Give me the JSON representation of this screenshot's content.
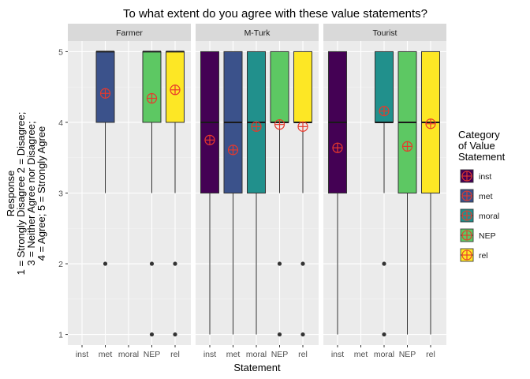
{
  "chart_data": {
    "type": "box",
    "title": "To what extent do you agree with these value statements?",
    "xlabel": "Statement",
    "ylabel_lines": [
      "Response",
      "1 = Strongly Disagree 2 = Disagree;",
      "3 = Neither Agree nor Disagree;",
      "4 = Agree; 5 = Strongly Agree"
    ],
    "ylim": [
      0.85,
      5.15
    ],
    "yticks": [
      1,
      2,
      3,
      4,
      5
    ],
    "categories": [
      "inst",
      "met",
      "moral",
      "NEP",
      "rel"
    ],
    "colors": {
      "inst": "#440154",
      "met": "#3B528B",
      "moral": "#21908C",
      "NEP": "#5DC863",
      "rel": "#FDE725",
      "mean_marker": "#E8392C",
      "panel_bg": "#EBEBEB",
      "strip_bg": "#D9D9D9"
    },
    "legend": {
      "title_lines": [
        "Category",
        "of Value",
        "Statement"
      ],
      "position": "right",
      "items": [
        "inst",
        "met",
        "moral",
        "NEP",
        "rel"
      ]
    },
    "mean_marker_icon": "crossed-circle-icon",
    "panels": [
      {
        "name": "Farmer",
        "boxes": [
          {
            "category": "met",
            "q1": 4,
            "median": 5,
            "q3": 5,
            "whisker_low": 3,
            "whisker_high": 5,
            "mean": 4.41,
            "outliers": [
              2
            ]
          },
          {
            "category": "NEP",
            "q1": 4,
            "median": 5,
            "q3": 5,
            "whisker_low": 3,
            "whisker_high": 5,
            "mean": 4.34,
            "outliers": [
              2,
              1
            ]
          },
          {
            "category": "rel",
            "q1": 4,
            "median": 5,
            "q3": 5,
            "whisker_low": 3,
            "whisker_high": 5,
            "mean": 4.46,
            "outliers": [
              2,
              1
            ]
          }
        ]
      },
      {
        "name": "M-Turk",
        "boxes": [
          {
            "category": "inst",
            "q1": 3,
            "median": 4,
            "q3": 5,
            "whisker_low": 1,
            "whisker_high": 5,
            "mean": 3.75,
            "outliers": []
          },
          {
            "category": "met",
            "q1": 3,
            "median": 4,
            "q3": 5,
            "whisker_low": 1,
            "whisker_high": 5,
            "mean": 3.61,
            "outliers": []
          },
          {
            "category": "moral",
            "q1": 3,
            "median": 4,
            "q3": 5,
            "whisker_low": 1,
            "whisker_high": 5,
            "mean": 3.94,
            "outliers": []
          },
          {
            "category": "NEP",
            "q1": 4,
            "median": 4,
            "q3": 5,
            "whisker_low": 3,
            "whisker_high": 5,
            "mean": 3.97,
            "outliers": [
              2,
              1
            ]
          },
          {
            "category": "rel",
            "q1": 4,
            "median": 4,
            "q3": 5,
            "whisker_low": 3,
            "whisker_high": 5,
            "mean": 3.94,
            "outliers": [
              2,
              1
            ]
          }
        ]
      },
      {
        "name": "Tourist",
        "boxes": [
          {
            "category": "inst",
            "q1": 3,
            "median": 4,
            "q3": 5,
            "whisker_low": 1,
            "whisker_high": 5,
            "mean": 3.64,
            "outliers": []
          },
          {
            "category": "moral",
            "q1": 4,
            "median": 4,
            "q3": 5,
            "whisker_low": 3,
            "whisker_high": 5,
            "mean": 4.16,
            "outliers": [
              2,
              1
            ]
          },
          {
            "category": "NEP",
            "q1": 3,
            "median": 4,
            "q3": 5,
            "whisker_low": 1,
            "whisker_high": 5,
            "mean": 3.66,
            "outliers": []
          },
          {
            "category": "rel",
            "q1": 3,
            "median": 4,
            "q3": 5,
            "whisker_low": 1,
            "whisker_high": 5,
            "mean": 3.98,
            "outliers": []
          }
        ]
      }
    ]
  }
}
